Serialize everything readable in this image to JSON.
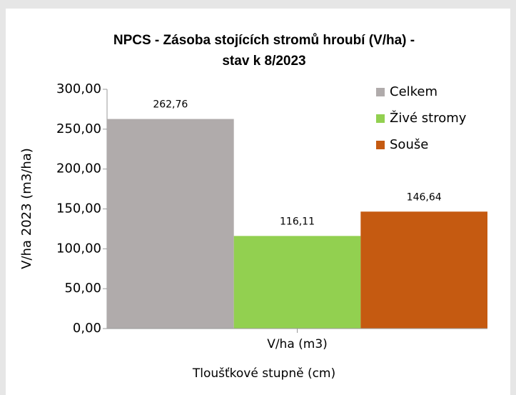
{
  "chart_data": {
    "type": "bar",
    "title": "NPCS - Zásoba stojících stromů hroubí (V/ha) -",
    "subtitle": "stav k 8/2023",
    "y_label": "V/ha 2023 (m3/ha)",
    "x_label": "Tloušťkové stupně (cm)",
    "categories": [
      "V/ha (m3)"
    ],
    "series": [
      {
        "name": "Celkem",
        "color": "#b0abab",
        "values": [
          262.76
        ],
        "value_labels": [
          "262,76"
        ]
      },
      {
        "name": "Živé stromy",
        "color": "#92d050",
        "values": [
          116.11
        ],
        "value_labels": [
          "116,11"
        ]
      },
      {
        "name": "Souše",
        "color": "#c55a11",
        "values": [
          146.64
        ],
        "value_labels": [
          "146,64"
        ]
      }
    ],
    "ylim": [
      0,
      300
    ],
    "yticks": [
      {
        "value": 0,
        "label": "0,00"
      },
      {
        "value": 50,
        "label": "50,00"
      },
      {
        "value": 100,
        "label": "100,00"
      },
      {
        "value": 150,
        "label": "150,00"
      },
      {
        "value": 200,
        "label": "200,00"
      },
      {
        "value": 250,
        "label": "250,00"
      },
      {
        "value": 300,
        "label": "300,00"
      }
    ],
    "legend": "top-right"
  }
}
